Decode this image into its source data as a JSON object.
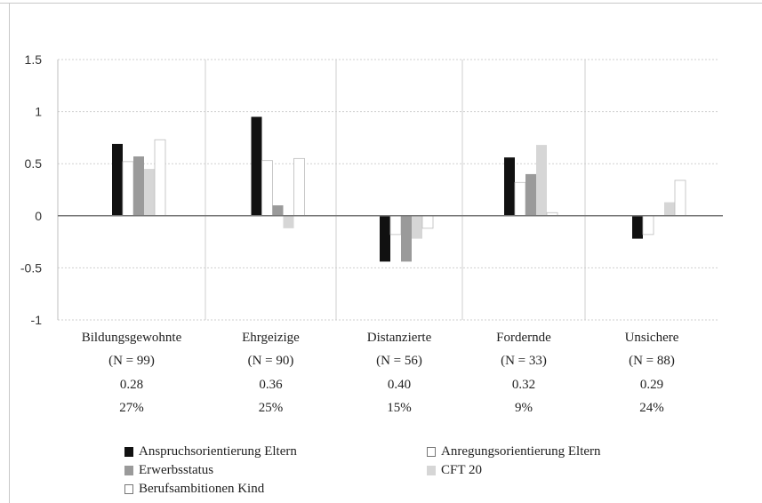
{
  "chart_data": {
    "type": "bar",
    "title": "",
    "xlabel": "",
    "ylabel": "",
    "ylim": [
      -1,
      1.5
    ],
    "yticks": [
      "1.5",
      "1",
      "0.5",
      "0",
      "-0.5",
      "-1"
    ],
    "grid": true,
    "legend_position": "bottom",
    "categories": [
      {
        "name": "Bildungsgewohnte",
        "n": "(N = 99)",
        "value": "0.28",
        "percent": "27%"
      },
      {
        "name": "Ehrgeizige",
        "n": "(N = 90)",
        "value": "0.36",
        "percent": "25%"
      },
      {
        "name": "Distanzierte",
        "n": "(N = 56)",
        "value": "0.40",
        "percent": "15%"
      },
      {
        "name": "Fordernde",
        "n": "(N = 33)",
        "value": "0.32",
        "percent": "9%"
      },
      {
        "name": "Unsichere",
        "n": "(N = 88)",
        "value": "0.29",
        "percent": "24%"
      }
    ],
    "series": [
      {
        "name": "Anspruchsorientierung Eltern",
        "color": "#111111",
        "values": [
          0.69,
          0.95,
          -0.44,
          0.56,
          -0.22
        ]
      },
      {
        "name": "Anregungsorientierung Eltern",
        "color": "#ffffff",
        "values": [
          0.52,
          0.53,
          -0.18,
          0.32,
          -0.18
        ]
      },
      {
        "name": "Erwerbsstatus",
        "color": "#9a9a9a",
        "values": [
          0.57,
          0.1,
          -0.44,
          0.4,
          0.0
        ]
      },
      {
        "name": "CFT 20",
        "color": "#d6d6d6",
        "values": [
          0.45,
          -0.12,
          -0.22,
          0.68,
          0.13
        ]
      },
      {
        "name": "Berufsambitionen Kind",
        "color": "#ffffff",
        "values": [
          0.73,
          0.55,
          -0.12,
          0.03,
          0.34
        ]
      }
    ]
  }
}
